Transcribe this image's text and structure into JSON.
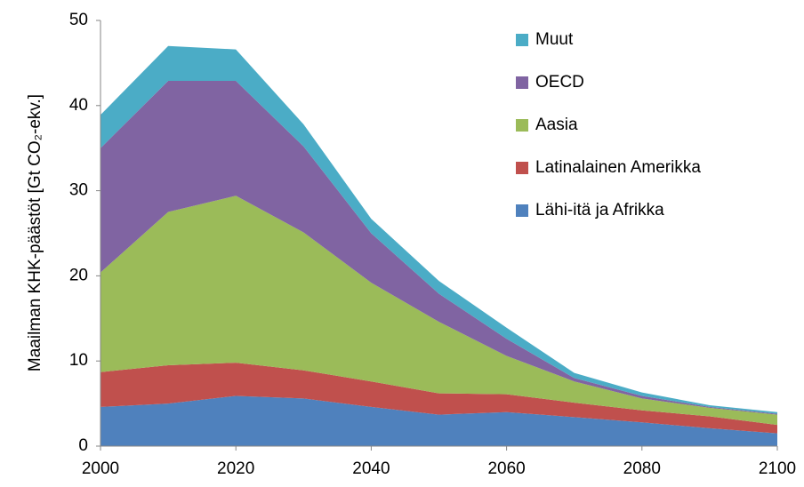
{
  "chart_data": {
    "type": "stacked_area",
    "y_label": "Maailman KHK-päästöt [Gt CO₂-ekv.]",
    "x": [
      2000,
      2010,
      2020,
      2030,
      2040,
      2050,
      2060,
      2070,
      2080,
      2090,
      2100
    ],
    "xlim": [
      2000,
      2100
    ],
    "xticks": [
      2000,
      2020,
      2040,
      2060,
      2080,
      2100
    ],
    "ylim": [
      0,
      50
    ],
    "yticks": [
      0,
      10,
      20,
      30,
      40,
      50
    ],
    "grid": false,
    "legend": "upper right",
    "series": [
      {
        "name": "Lähi-itä ja Afrikka",
        "color": "#4f81bd",
        "values": [
          4.6,
          5.0,
          5.9,
          5.6,
          4.6,
          3.7,
          4.0,
          3.4,
          2.8,
          2.1,
          1.5
        ]
      },
      {
        "name": "Latinalainen Amerikka",
        "color": "#c0504d",
        "values": [
          4.1,
          4.5,
          3.9,
          3.3,
          3.0,
          2.5,
          2.1,
          1.7,
          1.4,
          1.4,
          1.0
        ]
      },
      {
        "name": "Aasia",
        "color": "#9bbb59",
        "values": [
          11.7,
          18.0,
          19.6,
          16.2,
          11.6,
          8.4,
          4.5,
          2.5,
          1.4,
          1.0,
          1.2
        ]
      },
      {
        "name": "OECD",
        "color": "#8064a2",
        "values": [
          14.6,
          15.4,
          13.5,
          10.1,
          5.8,
          3.3,
          2.0,
          0.4,
          0.3,
          0.1,
          0.1
        ]
      },
      {
        "name": "Muut",
        "color": "#4bacc6",
        "values": [
          3.9,
          4.1,
          3.7,
          2.6,
          1.7,
          1.5,
          1.3,
          0.6,
          0.4,
          0.2,
          0.2
        ]
      }
    ]
  }
}
